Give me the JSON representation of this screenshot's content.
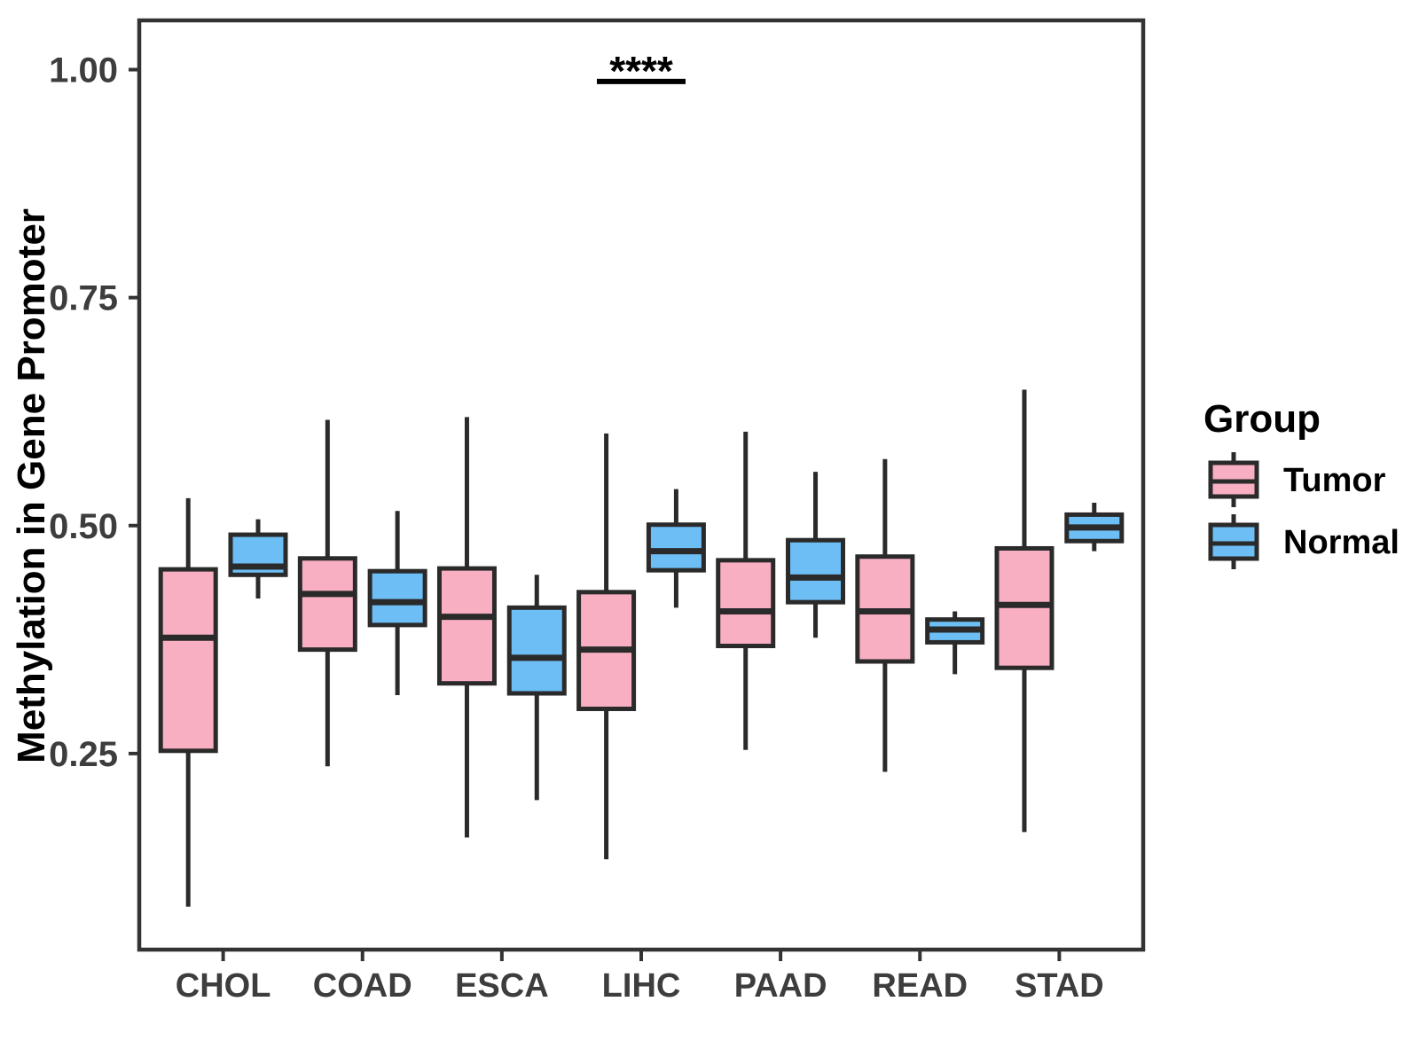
{
  "chart_data": {
    "type": "boxplot",
    "title": "",
    "xlabel": "",
    "ylabel": "Methylation in Gene Promoter",
    "ylim": [
      0.035,
      1.054
    ],
    "yticks": [
      {
        "value": 0.25,
        "label": "0.25"
      },
      {
        "value": 0.5,
        "label": "0.50"
      },
      {
        "value": 0.75,
        "label": "0.75"
      },
      {
        "value": 1.0,
        "label": "1.00"
      }
    ],
    "categories": [
      "CHOL",
      "COAD",
      "ESCA",
      "LIHC",
      "PAAD",
      "READ",
      "STAD"
    ],
    "grid": "off",
    "panel_border": "on",
    "legend": {
      "position": "right",
      "title": "Group",
      "entries": [
        {
          "label": "Tumor",
          "color": "#F9AFC2"
        },
        {
          "label": "Normal",
          "color": "#6DBEF5"
        }
      ]
    },
    "series": [
      {
        "name": "Tumor",
        "color": "#F9AFC2",
        "boxes": [
          {
            "category": "CHOL",
            "whisker_low": 0.082,
            "q1": 0.253,
            "median": 0.377,
            "q3": 0.452,
            "whisker_high": 0.53
          },
          {
            "category": "COAD",
            "whisker_low": 0.236,
            "q1": 0.364,
            "median": 0.425,
            "q3": 0.464,
            "whisker_high": 0.616
          },
          {
            "category": "ESCA",
            "whisker_low": 0.158,
            "q1": 0.327,
            "median": 0.4,
            "q3": 0.453,
            "whisker_high": 0.619
          },
          {
            "category": "LIHC",
            "whisker_low": 0.134,
            "q1": 0.299,
            "median": 0.364,
            "q3": 0.427,
            "whisker_high": 0.601
          },
          {
            "category": "PAAD",
            "whisker_low": 0.254,
            "q1": 0.368,
            "median": 0.406,
            "q3": 0.462,
            "whisker_high": 0.603
          },
          {
            "category": "READ",
            "whisker_low": 0.23,
            "q1": 0.351,
            "median": 0.406,
            "q3": 0.466,
            "whisker_high": 0.573
          },
          {
            "category": "STAD",
            "whisker_low": 0.164,
            "q1": 0.344,
            "median": 0.413,
            "q3": 0.475,
            "whisker_high": 0.649
          }
        ]
      },
      {
        "name": "Normal",
        "color": "#6DBEF5",
        "boxes": [
          {
            "category": "CHOL",
            "whisker_low": 0.42,
            "q1": 0.446,
            "median": 0.455,
            "q3": 0.49,
            "whisker_high": 0.507
          },
          {
            "category": "COAD",
            "whisker_low": 0.314,
            "q1": 0.391,
            "median": 0.416,
            "q3": 0.45,
            "whisker_high": 0.516
          },
          {
            "category": "ESCA",
            "whisker_low": 0.199,
            "q1": 0.316,
            "median": 0.355,
            "q3": 0.41,
            "whisker_high": 0.446
          },
          {
            "category": "LIHC",
            "whisker_low": 0.41,
            "q1": 0.451,
            "median": 0.472,
            "q3": 0.501,
            "whisker_high": 0.54
          },
          {
            "category": "PAAD",
            "whisker_low": 0.377,
            "q1": 0.416,
            "median": 0.443,
            "q3": 0.484,
            "whisker_high": 0.559
          },
          {
            "category": "READ",
            "whisker_low": 0.337,
            "q1": 0.372,
            "median": 0.386,
            "q3": 0.397,
            "whisker_high": 0.406
          },
          {
            "category": "STAD",
            "whisker_low": 0.472,
            "q1": 0.483,
            "median": 0.498,
            "q3": 0.512,
            "whisker_high": 0.525
          }
        ]
      }
    ],
    "significance": {
      "label": "****",
      "category": "LIHC",
      "compares": [
        "Tumor",
        "Normal"
      ],
      "line_y": 0.987
    },
    "style": {
      "box_stroke": "#2A2A2A",
      "axis_line": "#333333",
      "axis_text": "#3D3D3D",
      "title_text": "#000000",
      "background": "#FFFFFF"
    }
  }
}
